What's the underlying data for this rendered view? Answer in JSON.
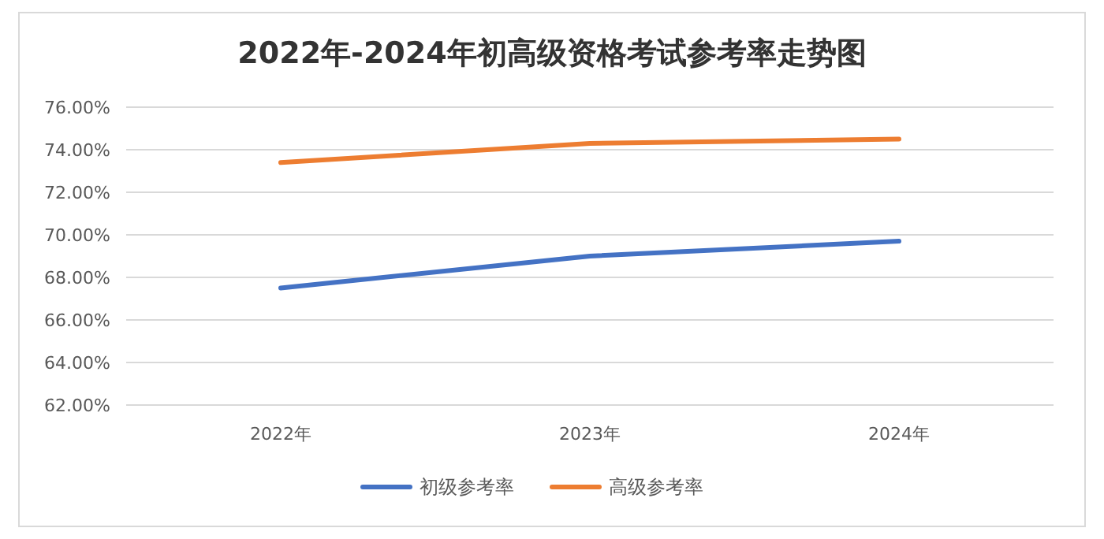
{
  "chart_data": {
    "type": "line",
    "title": "2022年-2024年初高级资格考试参考率走势图",
    "categories": [
      "2022年",
      "2023年",
      "2024年"
    ],
    "series": [
      {
        "name": "初级参考率",
        "color": "#4472c4",
        "values": [
          67.5,
          69.0,
          69.7
        ]
      },
      {
        "name": "高级参考率",
        "color": "#ed7d31",
        "values": [
          73.4,
          74.3,
          74.5
        ]
      }
    ],
    "ylim": [
      62,
      76
    ],
    "yticks": [
      {
        "value": 62,
        "label": "62.00%"
      },
      {
        "value": 64,
        "label": "64.00%"
      },
      {
        "value": 66,
        "label": "66.00%"
      },
      {
        "value": 68,
        "label": "68.00%"
      },
      {
        "value": 70,
        "label": "70.00%"
      },
      {
        "value": 72,
        "label": "72.00%"
      },
      {
        "value": 74,
        "label": "74.00%"
      },
      {
        "value": 76,
        "label": "76.00%"
      }
    ],
    "grid": "y",
    "legend": "bottom",
    "marker": "none",
    "line_style": "solid"
  }
}
